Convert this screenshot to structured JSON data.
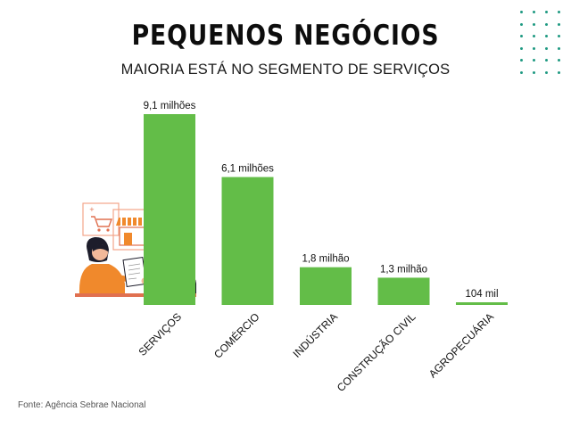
{
  "header": {
    "title": "PEQUENOS NEGÓCIOS",
    "subtitle": "MAIORIA ESTÁ NO SEGMENTO DE SERVIÇOS"
  },
  "footer": {
    "source": "Fonte: Agência Sebrae Nacional"
  },
  "colors": {
    "bar": "#63bd48",
    "accent_dots": "#1f9a82",
    "illustration_orange": "#f0892c",
    "illustration_pink": "#f2a58a",
    "illustration_dark": "#1d1d2b",
    "illustration_line": "#e07050"
  },
  "chart_data": {
    "type": "bar",
    "title": "PEQUENOS NEGÓCIOS",
    "subtitle": "MAIORIA ESTÁ NO SEGMENTO DE SERVIÇOS",
    "categories": [
      "SERVIÇOS",
      "COMÉRCIO",
      "INDÚSTRIA",
      "CONSTRUÇÃO CIVIL",
      "AGROPECUÁRIA"
    ],
    "values": [
      9100000,
      6100000,
      1800000,
      1300000,
      104000
    ],
    "data_labels": [
      "9,1 milhões",
      "6,1 milhões",
      "1,8 milhão",
      "1,3 milhão",
      "104 mil"
    ],
    "xlabel": "",
    "ylabel": "",
    "ylim": [
      0,
      9100000
    ],
    "grid": false,
    "legend": "none"
  }
}
